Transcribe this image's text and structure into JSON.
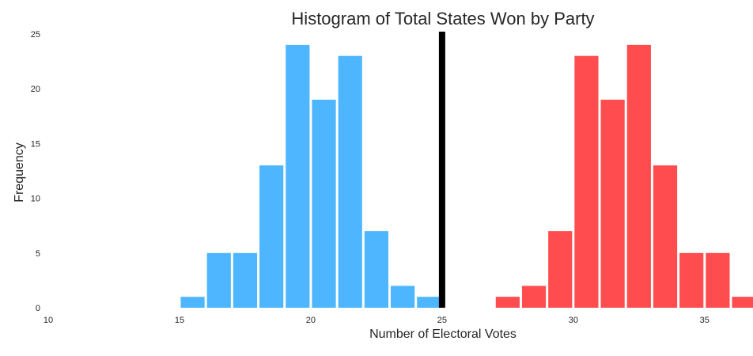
{
  "chart_data": {
    "type": "bar",
    "title": "Histogram of Total States Won by Party",
    "xlabel": "Number of Electoral Votes",
    "ylabel": "Frequency",
    "xlim": [
      10,
      36
    ],
    "ylim": [
      0,
      25
    ],
    "x_ticks": [
      10,
      15,
      20,
      25,
      30,
      35
    ],
    "y_ticks": [
      0,
      5,
      10,
      15,
      20,
      25
    ],
    "grid": false,
    "bin_width": 1,
    "reference_line": {
      "x": 25,
      "color": "#000000"
    },
    "series": [
      {
        "color": "#4db6ff",
        "bins": [
          {
            "x": 15,
            "count": 1
          },
          {
            "x": 16,
            "count": 5
          },
          {
            "x": 17,
            "count": 5
          },
          {
            "x": 18,
            "count": 13
          },
          {
            "x": 19,
            "count": 24
          },
          {
            "x": 20,
            "count": 19
          },
          {
            "x": 21,
            "count": 23
          },
          {
            "x": 22,
            "count": 7
          },
          {
            "x": 23,
            "count": 2
          },
          {
            "x": 24,
            "count": 1
          }
        ]
      },
      {
        "color": "#ff4c4f",
        "bins": [
          {
            "x": 27,
            "count": 1
          },
          {
            "x": 28,
            "count": 2
          },
          {
            "x": 29,
            "count": 7
          },
          {
            "x": 30,
            "count": 23
          },
          {
            "x": 31,
            "count": 19
          },
          {
            "x": 32,
            "count": 24
          },
          {
            "x": 33,
            "count": 13
          },
          {
            "x": 34,
            "count": 5
          },
          {
            "x": 35,
            "count": 5
          },
          {
            "x": 36,
            "count": 1
          }
        ]
      }
    ]
  }
}
